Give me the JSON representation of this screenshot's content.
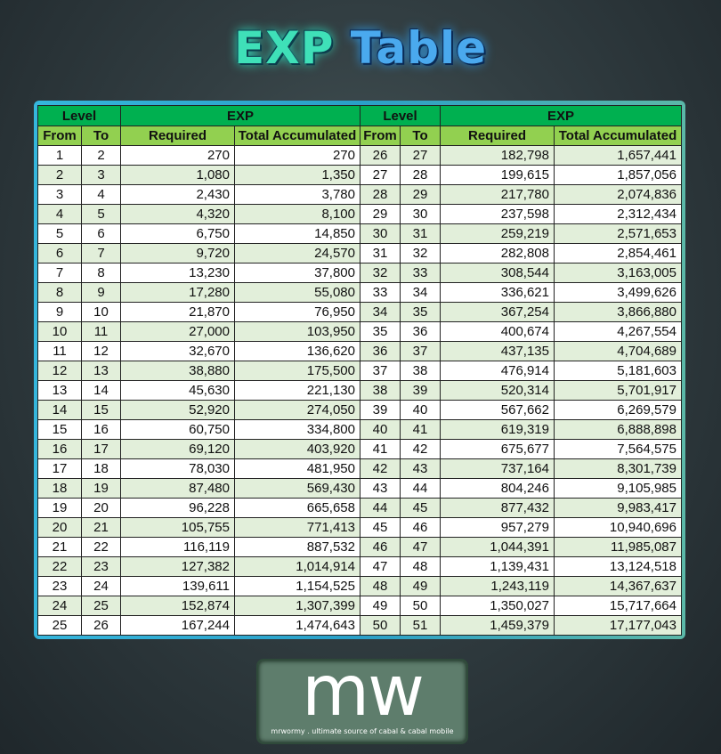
{
  "title": {
    "part1": "EXP",
    "part2": "Table"
  },
  "headers": {
    "level": "Level",
    "exp": "EXP",
    "from": "From",
    "to": "To",
    "required": "Required",
    "total": "Total Accumulated"
  },
  "colors": {
    "header_dark": "#00b050",
    "header_light": "#92d050",
    "row_alt": "#e2efda",
    "frame": "#35b6dc"
  },
  "rows": [
    [
      "1",
      "2",
      "270",
      "270"
    ],
    [
      "2",
      "3",
      "1,080",
      "1,350"
    ],
    [
      "3",
      "4",
      "2,430",
      "3,780"
    ],
    [
      "4",
      "5",
      "4,320",
      "8,100"
    ],
    [
      "5",
      "6",
      "6,750",
      "14,850"
    ],
    [
      "6",
      "7",
      "9,720",
      "24,570"
    ],
    [
      "7",
      "8",
      "13,230",
      "37,800"
    ],
    [
      "8",
      "9",
      "17,280",
      "55,080"
    ],
    [
      "9",
      "10",
      "21,870",
      "76,950"
    ],
    [
      "10",
      "11",
      "27,000",
      "103,950"
    ],
    [
      "11",
      "12",
      "32,670",
      "136,620"
    ],
    [
      "12",
      "13",
      "38,880",
      "175,500"
    ],
    [
      "13",
      "14",
      "45,630",
      "221,130"
    ],
    [
      "14",
      "15",
      "52,920",
      "274,050"
    ],
    [
      "15",
      "16",
      "60,750",
      "334,800"
    ],
    [
      "16",
      "17",
      "69,120",
      "403,920"
    ],
    [
      "17",
      "18",
      "78,030",
      "481,950"
    ],
    [
      "18",
      "19",
      "87,480",
      "569,430"
    ],
    [
      "19",
      "20",
      "96,228",
      "665,658"
    ],
    [
      "20",
      "21",
      "105,755",
      "771,413"
    ],
    [
      "21",
      "22",
      "116,119",
      "887,532"
    ],
    [
      "22",
      "23",
      "127,382",
      "1,014,914"
    ],
    [
      "23",
      "24",
      "139,611",
      "1,154,525"
    ],
    [
      "24",
      "25",
      "152,874",
      "1,307,399"
    ],
    [
      "25",
      "26",
      "167,244",
      "1,474,643"
    ],
    [
      "26",
      "27",
      "182,798",
      "1,657,441"
    ],
    [
      "27",
      "28",
      "199,615",
      "1,857,056"
    ],
    [
      "28",
      "29",
      "217,780",
      "2,074,836"
    ],
    [
      "29",
      "30",
      "237,598",
      "2,312,434"
    ],
    [
      "30",
      "31",
      "259,219",
      "2,571,653"
    ],
    [
      "31",
      "32",
      "282,808",
      "2,854,461"
    ],
    [
      "32",
      "33",
      "308,544",
      "3,163,005"
    ],
    [
      "33",
      "34",
      "336,621",
      "3,499,626"
    ],
    [
      "34",
      "35",
      "367,254",
      "3,866,880"
    ],
    [
      "35",
      "36",
      "400,674",
      "4,267,554"
    ],
    [
      "36",
      "37",
      "437,135",
      "4,704,689"
    ],
    [
      "37",
      "38",
      "476,914",
      "5,181,603"
    ],
    [
      "38",
      "39",
      "520,314",
      "5,701,917"
    ],
    [
      "39",
      "40",
      "567,662",
      "6,269,579"
    ],
    [
      "40",
      "41",
      "619,319",
      "6,888,898"
    ],
    [
      "41",
      "42",
      "675,677",
      "7,564,575"
    ],
    [
      "42",
      "43",
      "737,164",
      "8,301,739"
    ],
    [
      "43",
      "44",
      "804,246",
      "9,105,985"
    ],
    [
      "44",
      "45",
      "877,432",
      "9,983,417"
    ],
    [
      "45",
      "46",
      "957,279",
      "10,940,696"
    ],
    [
      "46",
      "47",
      "1,044,391",
      "11,985,087"
    ],
    [
      "47",
      "48",
      "1,139,431",
      "13,124,518"
    ],
    [
      "48",
      "49",
      "1,243,119",
      "14,367,637"
    ],
    [
      "49",
      "50",
      "1,350,027",
      "15,717,664"
    ],
    [
      "50",
      "51",
      "1,459,379",
      "17,177,043"
    ]
  ],
  "logo": {
    "mark": "mw",
    "tagline": "mrwormy . ultimate source of cabal & cabal mobile"
  }
}
